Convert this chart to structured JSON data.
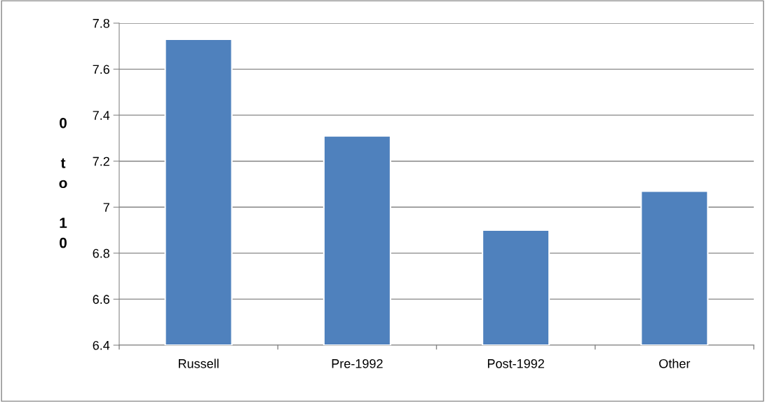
{
  "chart_data": {
    "type": "bar",
    "ylabel": "0 to 10",
    "categories": [
      "Russell",
      "Pre-1992",
      "Post-1992",
      "Other"
    ],
    "values": [
      7.73,
      7.31,
      6.9,
      7.07
    ],
    "color": "#4f81bd",
    "ylim": [
      6.4,
      7.8
    ],
    "yticks": [
      {
        "value": 6.4,
        "label": "6.4"
      },
      {
        "value": 6.6,
        "label": "6.6"
      },
      {
        "value": 6.8,
        "label": "6.8"
      },
      {
        "value": 7.0,
        "label": "7"
      },
      {
        "value": 7.2,
        "label": "7.2"
      },
      {
        "value": 7.4,
        "label": "7.4"
      },
      {
        "value": 7.6,
        "label": "7.6"
      },
      {
        "value": 7.8,
        "label": "7.8"
      }
    ],
    "grid": "y",
    "legend": false
  }
}
